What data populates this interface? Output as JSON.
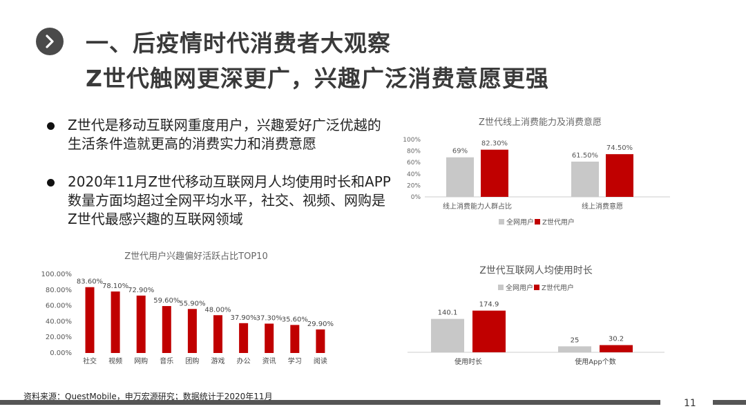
{
  "header": {
    "title_line1": "一、后疫情时代消费者大观察",
    "title_line2": "Z世代触网更深更广，兴趣广泛消费意愿更强"
  },
  "bullets": [
    "Z世代是移动互联网重度用户，兴趣爱好广泛优越的生活条件造就更高的消费实力和消费意愿",
    "2020年11月Z世代移动互联网月人均使用时长和APP数量方面均超过全网平均水平，社交、视频、网购是Z世代最感兴趣的互联网领域"
  ],
  "footer": {
    "source": "资料来源：QuestMobile，申万宏源研究；数据统计于2020年11月",
    "page": "11"
  },
  "colors": {
    "gray": "#c8c8c8",
    "red": "#c00000",
    "dark": "#555555"
  },
  "chart_data": [
    {
      "type": "bar",
      "title": "Z世代线上消费能力及消费意愿",
      "categories": [
        "线上消费能力人群占比",
        "线上消费意愿"
      ],
      "series": [
        {
          "name": "全网用户",
          "values": [
            69,
            61.5
          ],
          "labels": [
            "69%",
            "61.50%"
          ]
        },
        {
          "name": "Z世代用户",
          "values": [
            82.3,
            74.5
          ],
          "labels": [
            "82.30%",
            "74.50%"
          ]
        }
      ],
      "ylim": [
        0,
        100
      ],
      "yticks": [
        "0%",
        "20%",
        "40%",
        "60%",
        "80%",
        "100%"
      ],
      "legend": "bottom"
    },
    {
      "type": "bar",
      "title": "Z世代用户兴趣偏好活跃占比TOP10",
      "categories": [
        "社交",
        "视频",
        "网购",
        "音乐",
        "团购",
        "游戏",
        "办公",
        "资讯",
        "学习",
        "阅读"
      ],
      "values": [
        83.6,
        78.1,
        72.9,
        59.6,
        55.9,
        48.0,
        37.9,
        37.3,
        35.6,
        29.9
      ],
      "labels": [
        "83.60%",
        "78.10%",
        "72.90%",
        "59.60%",
        "55.90%",
        "48.00%",
        "37.90%",
        "37.30%",
        "35.60%",
        "29.90%"
      ],
      "ylim": [
        0,
        100
      ],
      "yticks": [
        "0.00%",
        "20.00%",
        "40.00%",
        "60.00%",
        "80.00%",
        "100.00%"
      ]
    },
    {
      "type": "bar",
      "title": "Z世代互联网人均使用时长",
      "categories": [
        "使用时长",
        "使用App个数"
      ],
      "series": [
        {
          "name": "全网用户",
          "values": [
            140.1,
            25
          ],
          "labels": [
            "140.1",
            "25"
          ]
        },
        {
          "name": "Z世代用户",
          "values": [
            174.9,
            30.2
          ],
          "labels": [
            "174.9",
            "30.2"
          ]
        }
      ],
      "legend": "top"
    }
  ]
}
